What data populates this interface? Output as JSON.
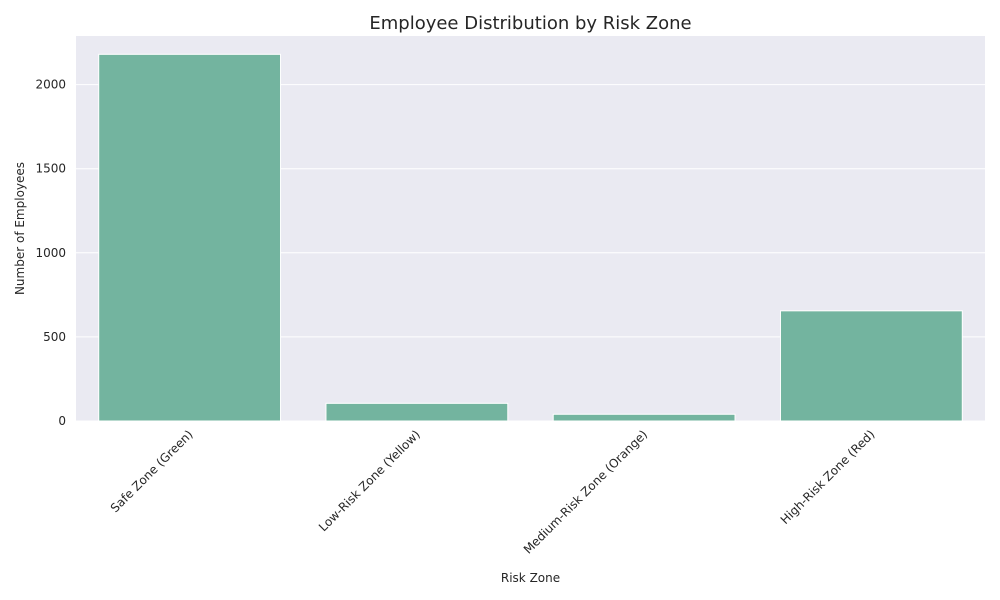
{
  "chart_data": {
    "type": "bar",
    "title": "Employee Distribution by Risk Zone",
    "xlabel": "Risk Zone",
    "ylabel": "Number of Employees",
    "categories": [
      "Safe Zone (Green)",
      "Low-Risk Zone (Yellow)",
      "Medium-Risk Zone (Orange)",
      "High-Risk Zone (Red)"
    ],
    "values": [
      2180,
      105,
      40,
      655
    ],
    "ylim": [
      0,
      2289
    ],
    "yticks": [
      0,
      500,
      1000,
      1500,
      2000
    ],
    "grid": true,
    "bar_color": "#73b49f",
    "background_color": "#eaeaf2",
    "grid_color": "#ffffff"
  }
}
